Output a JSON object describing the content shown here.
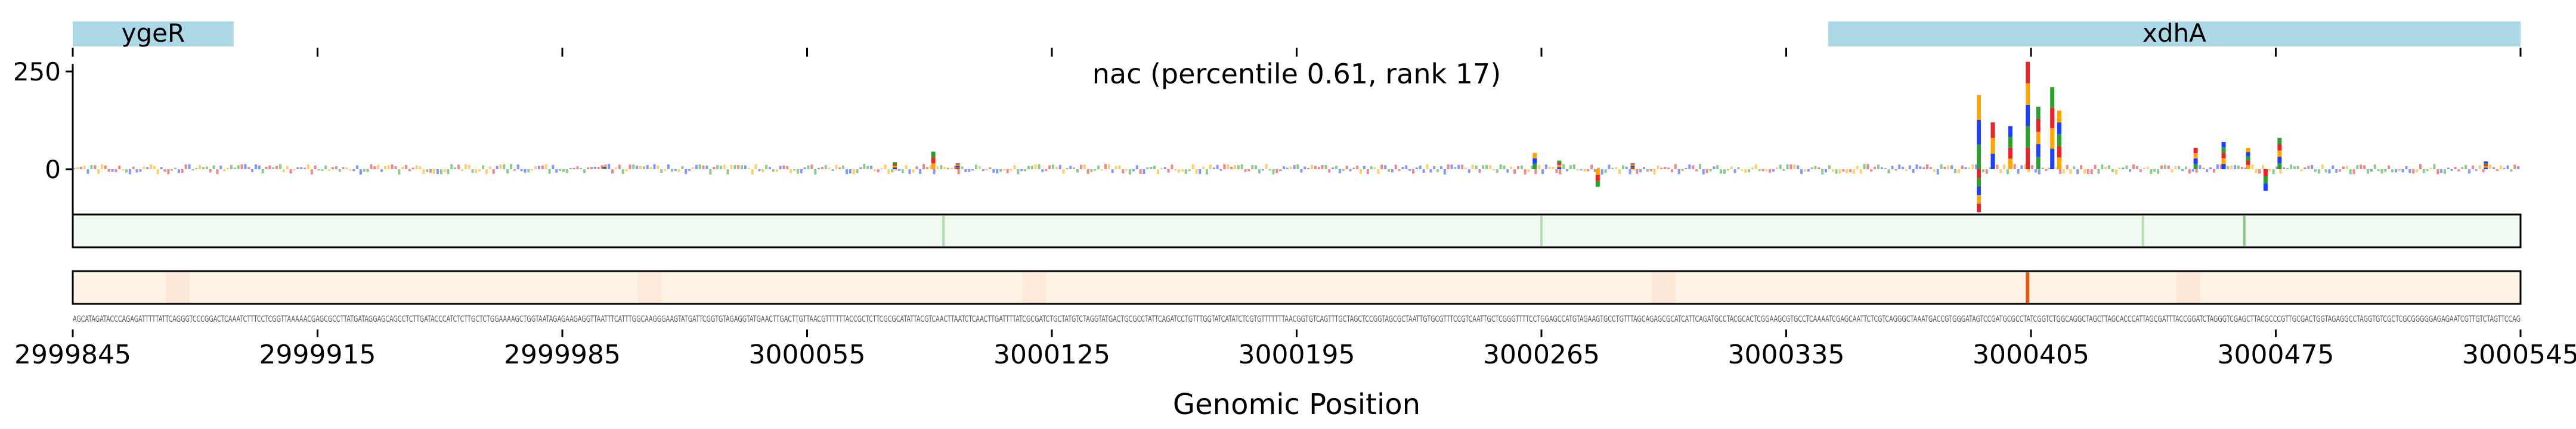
{
  "chart_data": {
    "type": "genome_track",
    "title": "nac (percentile 0.61, rank 17)",
    "xlabel": "Genomic Position",
    "xlim": [
      2999845,
      3000545
    ],
    "x_ticks": [
      2999845,
      2999915,
      2999985,
      3000055,
      3000125,
      3000195,
      3000265,
      3000335,
      3000405,
      3000475,
      3000545
    ],
    "x_tick_labels": [
      "2999845",
      "2999915",
      "2999985",
      "3000055",
      "3000125",
      "3000195",
      "3000265",
      "3000335",
      "3000405",
      "3000475",
      "3000545"
    ],
    "genes": [
      {
        "name": "ygeR",
        "start": 2999845,
        "end": 2999891
      },
      {
        "name": "xdhA",
        "start": 3000347,
        "end": 3000545
      }
    ],
    "gene_color": "#add8e6",
    "logo": {
      "ylim": [
        -150,
        300
      ],
      "y_ticks": [
        0,
        250
      ],
      "y_tick_labels": [
        "0",
        "250"
      ],
      "base_colors": {
        "A": "#2ca02c",
        "C": "#1f3fff",
        "G": "#ffa500",
        "T": "#e8242a"
      },
      "peaks": [
        {
          "x": 2999997,
          "y": 8
        },
        {
          "x": 3000080,
          "y": 18
        },
        {
          "x": 3000091,
          "y": 45
        },
        {
          "x": 3000098,
          "y": 15
        },
        {
          "x": 3000263,
          "y": 42
        },
        {
          "x": 3000270,
          "y": 22
        },
        {
          "x": 3000281,
          "y": -45
        },
        {
          "x": 3000291,
          "y": 15
        },
        {
          "x": 3000390,
          "y": 190
        },
        {
          "x": 3000394,
          "y": 120
        },
        {
          "x": 3000399,
          "y": 110
        },
        {
          "x": 3000404,
          "y": 275
        },
        {
          "x": 3000407,
          "y": 160
        },
        {
          "x": 3000411,
          "y": 210
        },
        {
          "x": 3000413,
          "y": 150
        },
        {
          "x": 3000390,
          "y": -110
        },
        {
          "x": 3000452,
          "y": 55
        },
        {
          "x": 3000460,
          "y": 70
        },
        {
          "x": 3000467,
          "y": 55
        },
        {
          "x": 3000472,
          "y": -55
        },
        {
          "x": 3000476,
          "y": 80
        },
        {
          "x": 3000535,
          "y": 20
        }
      ]
    },
    "track_green": {
      "color": "#2ca02c",
      "background": "#f1faf0",
      "marks": [
        {
          "x": 3000094,
          "v": 0.35
        },
        {
          "x": 3000265,
          "v": 0.3
        },
        {
          "x": 3000437,
          "v": 0.3
        },
        {
          "x": 3000466,
          "v": 0.55
        }
      ]
    },
    "track_orange": {
      "color": "#e8561c",
      "background": "#fff3e6",
      "marks": [
        {
          "x": 3000404,
          "v": 1.0
        },
        {
          "x": 2999875,
          "v": 0.08
        },
        {
          "x": 3000010,
          "v": 0.06
        },
        {
          "x": 3000120,
          "v": 0.06
        },
        {
          "x": 3000300,
          "v": 0.07
        },
        {
          "x": 3000450,
          "v": 0.08
        }
      ]
    },
    "sequence": "AGCATAGATACCCAGAGATTTTTATTCAGGGTCCCGGACTCAAATCTTTCCTCGGTTAAAAACGAGCGCCTTATGATAGGAGCAGCCTCTTGATACCCATCTCTTGCTCTGGAAAAGCTGGTAATAGAGAAGAGGTTAATTTCATTTGGCAAGGGAAGTATGATTCGGTGTAGAGGTATGAACTTGACTTGTTAACGTTTTTTACCGCTCTTCGCGCATATTACGTCAACTTAATCTCAACTTGATTTTATCGCGATCTGCTATGTCTAGGTATGACTGCGCCTATTCAGATCCTGTTTGGTATCATATCTCGTGTTTTTTTAACGGTGTCAGTTTGCTAGCTCCGGTAGCGCTAATTGTGCGTTTCCGTCAATTGCTCGGGTTTTCCTGGAGCCATGTAGAAGTGCCTGTTTAGCAGAGCGCATCATTCAGATGCCTACGCACTCGGAAGCGTGCCTCAAAATCGAGCAATTCTCGTCAGGGCTAAATGACCGTGGGATAGTCCGATGCGCCTATCGGTCTGGCAGGCTAGCTTAGCACCCATTAGCGATTTACCGGATCTAGGGTCGAGCTTACGCCCGTTGCGACTGGTAGAGGCCTAGGTGTCGCTCGCGGGGGAGAGAATCGTTGTCTAGTTCCAG"
  }
}
